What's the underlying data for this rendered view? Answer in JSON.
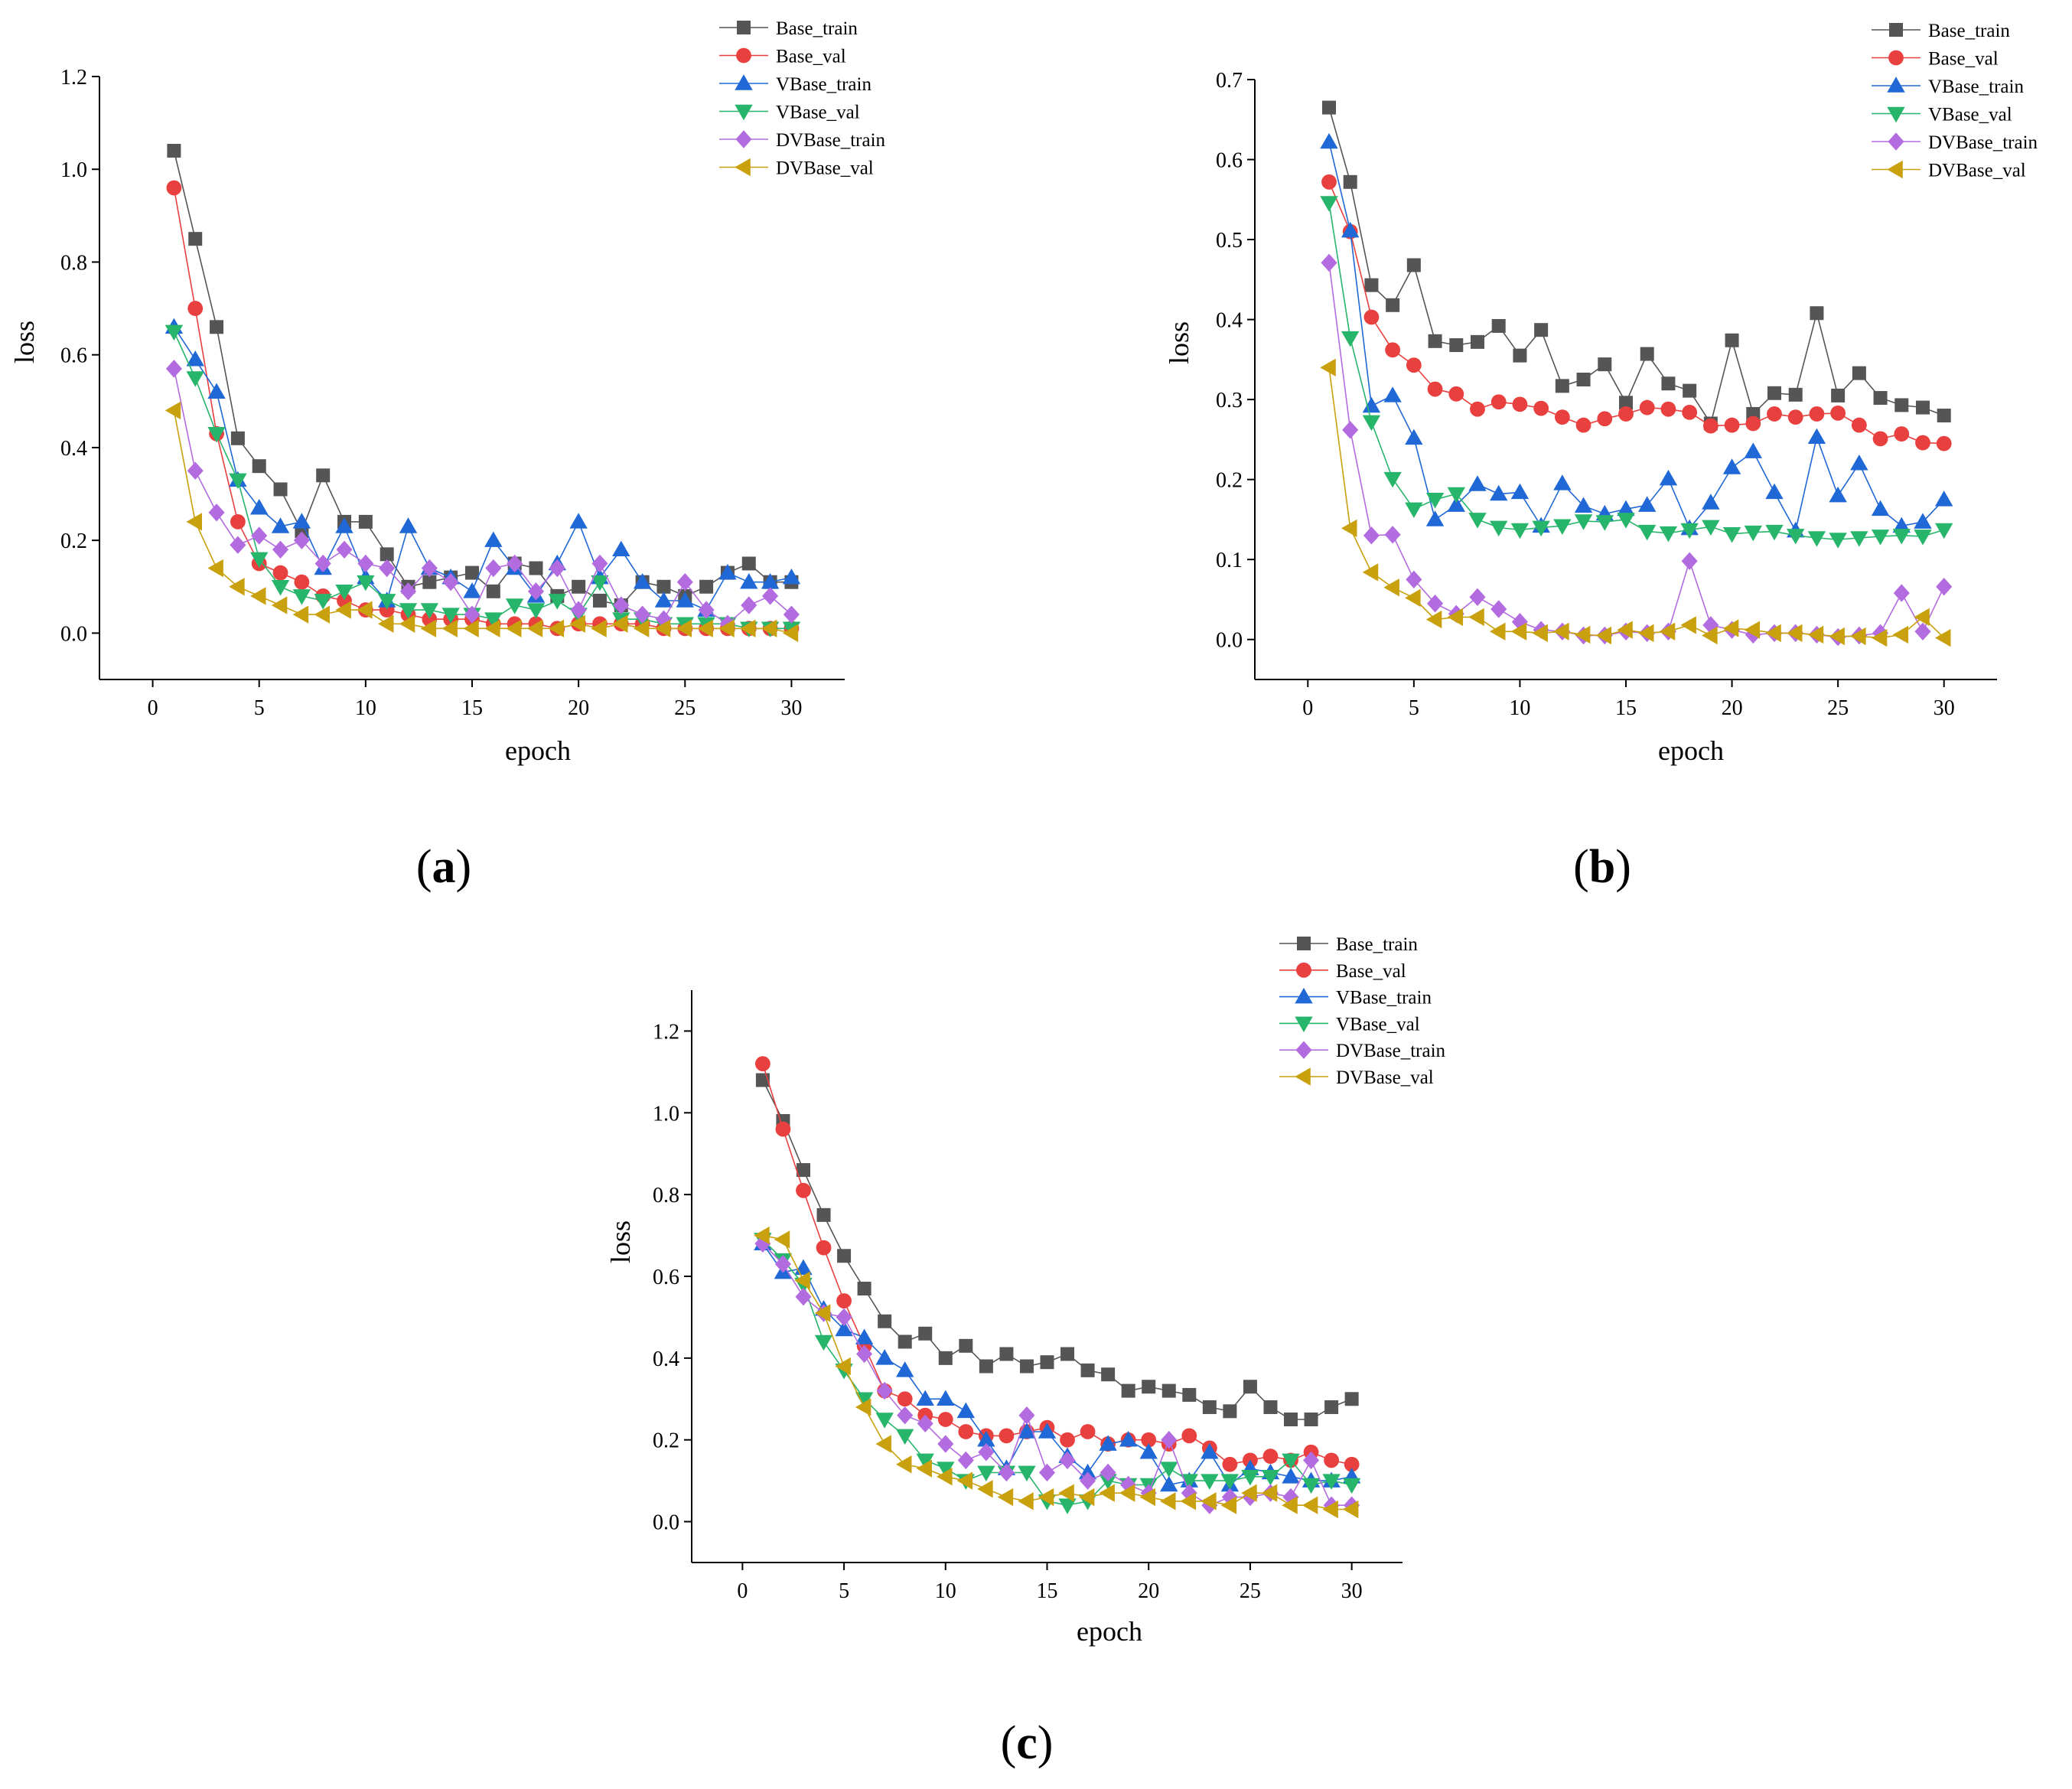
{
  "figure": {
    "panel_labels": [
      "a",
      "b",
      "c"
    ]
  },
  "chart_data": [
    {
      "type": "line",
      "panel": "a",
      "title": "",
      "xlabel": "epoch",
      "ylabel": "loss",
      "xlim": [
        -2.5,
        32.5
      ],
      "ylim": [
        -0.1,
        1.2
      ],
      "xticks": [
        0,
        5,
        10,
        15,
        20,
        25,
        30
      ],
      "yticks": [
        0.0,
        0.2,
        0.4,
        0.6,
        0.8,
        1.0,
        1.2
      ],
      "ytick_labels": [
        "0.0",
        "0.2",
        "0.4",
        "0.6",
        "0.8",
        "1.0",
        "1.2"
      ],
      "legend_position": "top-right",
      "x": [
        1,
        2,
        3,
        4,
        5,
        6,
        7,
        8,
        9,
        10,
        11,
        12,
        13,
        14,
        15,
        16,
        17,
        18,
        19,
        20,
        21,
        22,
        23,
        24,
        25,
        26,
        27,
        28,
        29,
        30
      ],
      "series": [
        {
          "name": "Base_train",
          "color": "#555555",
          "marker": "square",
          "values": [
            1.04,
            0.85,
            0.66,
            0.42,
            0.36,
            0.31,
            0.22,
            0.34,
            0.24,
            0.24,
            0.17,
            0.1,
            0.11,
            0.12,
            0.13,
            0.09,
            0.15,
            0.14,
            0.08,
            0.1,
            0.07,
            0.06,
            0.11,
            0.1,
            0.08,
            0.1,
            0.13,
            0.15,
            0.11,
            0.11
          ]
        },
        {
          "name": "Base_val",
          "color": "#e8403f",
          "marker": "circle",
          "values": [
            0.96,
            0.7,
            0.43,
            0.24,
            0.15,
            0.13,
            0.11,
            0.08,
            0.07,
            0.05,
            0.05,
            0.04,
            0.03,
            0.03,
            0.03,
            0.02,
            0.02,
            0.02,
            0.01,
            0.02,
            0.02,
            0.02,
            0.02,
            0.01,
            0.01,
            0.01,
            0.01,
            0.01,
            0.01,
            0.01
          ]
        },
        {
          "name": "VBase_train",
          "color": "#1f68d6",
          "marker": "triangle-up",
          "values": [
            0.66,
            0.59,
            0.52,
            0.33,
            0.27,
            0.23,
            0.24,
            0.14,
            0.23,
            0.12,
            0.07,
            0.23,
            0.14,
            0.12,
            0.09,
            0.2,
            0.14,
            0.08,
            0.15,
            0.24,
            0.12,
            0.18,
            0.11,
            0.07,
            0.07,
            0.05,
            0.13,
            0.11,
            0.11,
            0.12
          ]
        },
        {
          "name": "VBase_val",
          "color": "#27b56b",
          "marker": "triangle-down",
          "values": [
            0.65,
            0.55,
            0.43,
            0.33,
            0.16,
            0.1,
            0.08,
            0.07,
            0.09,
            0.11,
            0.07,
            0.05,
            0.05,
            0.04,
            0.04,
            0.03,
            0.06,
            0.05,
            0.07,
            0.04,
            0.11,
            0.03,
            0.03,
            0.02,
            0.02,
            0.02,
            0.02,
            0.01,
            0.01,
            0.01
          ]
        },
        {
          "name": "DVBase_train",
          "color": "#b36be0",
          "marker": "diamond",
          "values": [
            0.57,
            0.35,
            0.26,
            0.19,
            0.21,
            0.18,
            0.2,
            0.15,
            0.18,
            0.15,
            0.14,
            0.09,
            0.14,
            0.11,
            0.04,
            0.14,
            0.15,
            0.09,
            0.14,
            0.05,
            0.15,
            0.06,
            0.04,
            0.03,
            0.11,
            0.05,
            0.02,
            0.06,
            0.08,
            0.04
          ]
        },
        {
          "name": "DVBase_val",
          "color": "#c9a00d",
          "marker": "triangle-left",
          "values": [
            0.48,
            0.24,
            0.14,
            0.1,
            0.08,
            0.06,
            0.04,
            0.04,
            0.05,
            0.05,
            0.02,
            0.02,
            0.01,
            0.01,
            0.01,
            0.01,
            0.01,
            0.01,
            0.01,
            0.02,
            0.01,
            0.02,
            0.01,
            0.01,
            0.01,
            0.01,
            0.01,
            0.01,
            0.01,
            0.0
          ]
        }
      ]
    },
    {
      "type": "line",
      "panel": "b",
      "title": "",
      "xlabel": "epoch",
      "ylabel": "loss",
      "xlim": [
        -2.5,
        32.5
      ],
      "ylim": [
        -0.05,
        0.7
      ],
      "xticks": [
        0,
        5,
        10,
        15,
        20,
        25,
        30
      ],
      "yticks": [
        0.0,
        0.1,
        0.2,
        0.3,
        0.4,
        0.5,
        0.6,
        0.7
      ],
      "ytick_labels": [
        "0.0",
        "0.1",
        "0.2",
        "0.3",
        "0.4",
        "0.5",
        "0.6",
        "0.7"
      ],
      "legend_position": "top-right",
      "x": [
        1,
        2,
        3,
        4,
        5,
        6,
        7,
        8,
        9,
        10,
        11,
        12,
        13,
        14,
        15,
        16,
        17,
        18,
        19,
        20,
        21,
        22,
        23,
        24,
        25,
        26,
        27,
        28,
        29,
        30
      ],
      "series": [
        {
          "name": "Base_train",
          "color": "#555555",
          "marker": "square",
          "values": [
            0.665,
            0.572,
            0.443,
            0.418,
            0.468,
            0.373,
            0.368,
            0.372,
            0.392,
            0.355,
            0.387,
            0.317,
            0.325,
            0.344,
            0.296,
            0.357,
            0.32,
            0.311,
            0.27,
            0.374,
            0.282,
            0.308,
            0.306,
            0.408,
            0.305,
            0.333,
            0.302,
            0.293,
            0.29,
            0.28
          ]
        },
        {
          "name": "Base_val",
          "color": "#e8403f",
          "marker": "circle",
          "values": [
            0.572,
            0.51,
            0.403,
            0.362,
            0.343,
            0.313,
            0.307,
            0.288,
            0.297,
            0.294,
            0.289,
            0.278,
            0.268,
            0.276,
            0.282,
            0.29,
            0.288,
            0.284,
            0.267,
            0.268,
            0.27,
            0.282,
            0.278,
            0.282,
            0.283,
            0.268,
            0.251,
            0.257,
            0.246,
            0.245
          ]
        },
        {
          "name": "VBase_train",
          "color": "#1f68d6",
          "marker": "triangle-up",
          "values": [
            0.622,
            0.511,
            0.292,
            0.305,
            0.252,
            0.15,
            0.168,
            0.194,
            0.182,
            0.184,
            0.142,
            0.195,
            0.167,
            0.157,
            0.163,
            0.168,
            0.201,
            0.139,
            0.171,
            0.215,
            0.235,
            0.184,
            0.136,
            0.253,
            0.18,
            0.22,
            0.163,
            0.142,
            0.147,
            0.175
          ]
        },
        {
          "name": "VBase_val",
          "color": "#27b56b",
          "marker": "triangle-down",
          "values": [
            0.546,
            0.377,
            0.272,
            0.201,
            0.163,
            0.175,
            0.182,
            0.15,
            0.14,
            0.137,
            0.14,
            0.142,
            0.148,
            0.147,
            0.15,
            0.135,
            0.133,
            0.137,
            0.141,
            0.132,
            0.134,
            0.135,
            0.13,
            0.127,
            0.125,
            0.127,
            0.129,
            0.13,
            0.129,
            0.137
          ]
        },
        {
          "name": "DVBase_train",
          "color": "#b36be0",
          "marker": "diamond",
          "values": [
            0.471,
            0.262,
            0.13,
            0.131,
            0.075,
            0.045,
            0.032,
            0.053,
            0.038,
            0.022,
            0.012,
            0.01,
            0.005,
            0.005,
            0.01,
            0.008,
            0.01,
            0.098,
            0.018,
            0.012,
            0.006,
            0.008,
            0.008,
            0.006,
            0.003,
            0.005,
            0.008,
            0.058,
            0.01,
            0.066
          ]
        },
        {
          "name": "DVBase_val",
          "color": "#c9a00d",
          "marker": "triangle-left",
          "values": [
            0.34,
            0.139,
            0.084,
            0.065,
            0.052,
            0.025,
            0.028,
            0.028,
            0.01,
            0.01,
            0.008,
            0.01,
            0.006,
            0.005,
            0.012,
            0.008,
            0.01,
            0.018,
            0.005,
            0.014,
            0.012,
            0.008,
            0.008,
            0.006,
            0.004,
            0.004,
            0.002,
            0.006,
            0.028,
            0.002
          ]
        }
      ]
    },
    {
      "type": "line",
      "panel": "c",
      "title": "",
      "xlabel": "epoch",
      "ylabel": "loss",
      "xlim": [
        -2.5,
        32.5
      ],
      "ylim": [
        -0.1,
        1.3
      ],
      "xticks": [
        0,
        5,
        10,
        15,
        20,
        25,
        30
      ],
      "yticks": [
        0.0,
        0.2,
        0.4,
        0.6,
        0.8,
        1.0,
        1.2
      ],
      "ytick_labels": [
        "0.0",
        "0.2",
        "0.4",
        "0.6",
        "0.8",
        "1.0",
        "1.2"
      ],
      "legend_position": "top-right",
      "x": [
        1,
        2,
        3,
        4,
        5,
        6,
        7,
        8,
        9,
        10,
        11,
        12,
        13,
        14,
        15,
        16,
        17,
        18,
        19,
        20,
        21,
        22,
        23,
        24,
        25,
        26,
        27,
        28,
        29,
        30
      ],
      "series": [
        {
          "name": "Base_train",
          "color": "#555555",
          "marker": "square",
          "values": [
            1.08,
            0.98,
            0.86,
            0.75,
            0.65,
            0.57,
            0.49,
            0.44,
            0.46,
            0.4,
            0.43,
            0.38,
            0.41,
            0.38,
            0.39,
            0.41,
            0.37,
            0.36,
            0.32,
            0.33,
            0.32,
            0.31,
            0.28,
            0.27,
            0.33,
            0.28,
            0.25,
            0.25,
            0.28,
            0.3
          ]
        },
        {
          "name": "Base_val",
          "color": "#e8403f",
          "marker": "circle",
          "values": [
            1.12,
            0.96,
            0.81,
            0.67,
            0.54,
            0.43,
            0.32,
            0.3,
            0.26,
            0.25,
            0.22,
            0.21,
            0.21,
            0.22,
            0.23,
            0.2,
            0.22,
            0.19,
            0.2,
            0.2,
            0.19,
            0.21,
            0.18,
            0.14,
            0.15,
            0.16,
            0.15,
            0.17,
            0.15,
            0.14
          ]
        },
        {
          "name": "VBase_train",
          "color": "#1f68d6",
          "marker": "triangle-up",
          "values": [
            0.68,
            0.61,
            0.62,
            0.52,
            0.47,
            0.45,
            0.4,
            0.37,
            0.3,
            0.3,
            0.27,
            0.2,
            0.13,
            0.22,
            0.22,
            0.16,
            0.12,
            0.19,
            0.2,
            0.17,
            0.09,
            0.1,
            0.17,
            0.09,
            0.13,
            0.12,
            0.11,
            0.1,
            0.1,
            0.11
          ]
        },
        {
          "name": "VBase_val",
          "color": "#27b56b",
          "marker": "triangle-down",
          "values": [
            0.69,
            0.64,
            0.58,
            0.44,
            0.37,
            0.3,
            0.25,
            0.21,
            0.15,
            0.13,
            0.1,
            0.12,
            0.12,
            0.12,
            0.05,
            0.04,
            0.05,
            0.1,
            0.09,
            0.09,
            0.13,
            0.1,
            0.1,
            0.1,
            0.11,
            0.11,
            0.15,
            0.09,
            0.1,
            0.09
          ]
        },
        {
          "name": "DVBase_train",
          "color": "#b36be0",
          "marker": "diamond",
          "values": [
            0.68,
            0.63,
            0.55,
            0.51,
            0.5,
            0.41,
            0.32,
            0.26,
            0.24,
            0.19,
            0.15,
            0.17,
            0.12,
            0.26,
            0.12,
            0.15,
            0.1,
            0.12,
            0.09,
            0.07,
            0.2,
            0.07,
            0.04,
            0.06,
            0.06,
            0.07,
            0.06,
            0.15,
            0.04,
            0.04
          ]
        },
        {
          "name": "DVBase_val",
          "color": "#c9a00d",
          "marker": "triangle-left",
          "values": [
            0.7,
            0.69,
            0.59,
            0.51,
            0.38,
            0.28,
            0.19,
            0.14,
            0.13,
            0.11,
            0.1,
            0.08,
            0.06,
            0.05,
            0.06,
            0.07,
            0.06,
            0.07,
            0.07,
            0.06,
            0.05,
            0.05,
            0.05,
            0.04,
            0.07,
            0.07,
            0.04,
            0.04,
            0.03,
            0.03
          ]
        }
      ]
    }
  ]
}
